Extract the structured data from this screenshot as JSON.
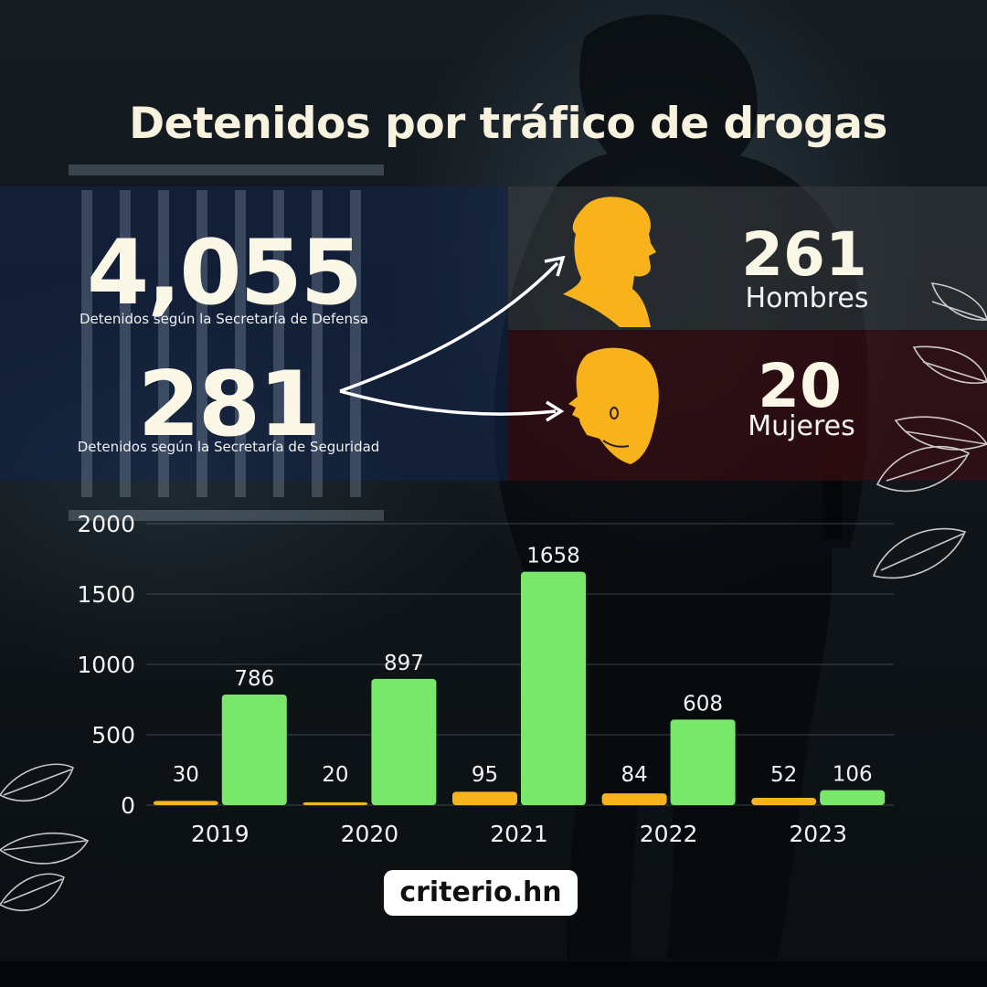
{
  "title": "Detenidos por tráfico de drogas",
  "stats": {
    "defensa": {
      "value": "4,055",
      "label": "Detenidos según la Secretaría de Defensa"
    },
    "seguridad": {
      "value": "281",
      "label": "Detenidos según la Secretaría de Seguridad"
    },
    "men": {
      "value": "261",
      "label": "Hombres"
    },
    "women": {
      "value": "20",
      "label": "Mujeres"
    }
  },
  "colors": {
    "series_a": "#f7b21c",
    "series_b": "#79e86a",
    "icon": "#f7b21c",
    "text": "#f8f3df"
  },
  "icons": [
    "man-profile-icon",
    "woman-profile-icon",
    "arrow-to-men-icon",
    "arrow-to-women-icon",
    "leaf-decoration-icon",
    "jail-bars-icon"
  ],
  "brand": "criterio.hn",
  "chart_data": {
    "type": "bar",
    "categories": [
      "2019",
      "2020",
      "2021",
      "2022",
      "2023"
    ],
    "series": [
      {
        "values": [
          30,
          20,
          95,
          84,
          52
        ],
        "color": "#f7b21c"
      },
      {
        "values": [
          786,
          897,
          1658,
          608,
          106
        ],
        "color": "#79e86a"
      }
    ],
    "ylim": [
      0,
      2000
    ],
    "yticks": [
      "0",
      "500",
      "1000",
      "1500",
      "2000"
    ],
    "grid": true,
    "data_labels": true
  }
}
